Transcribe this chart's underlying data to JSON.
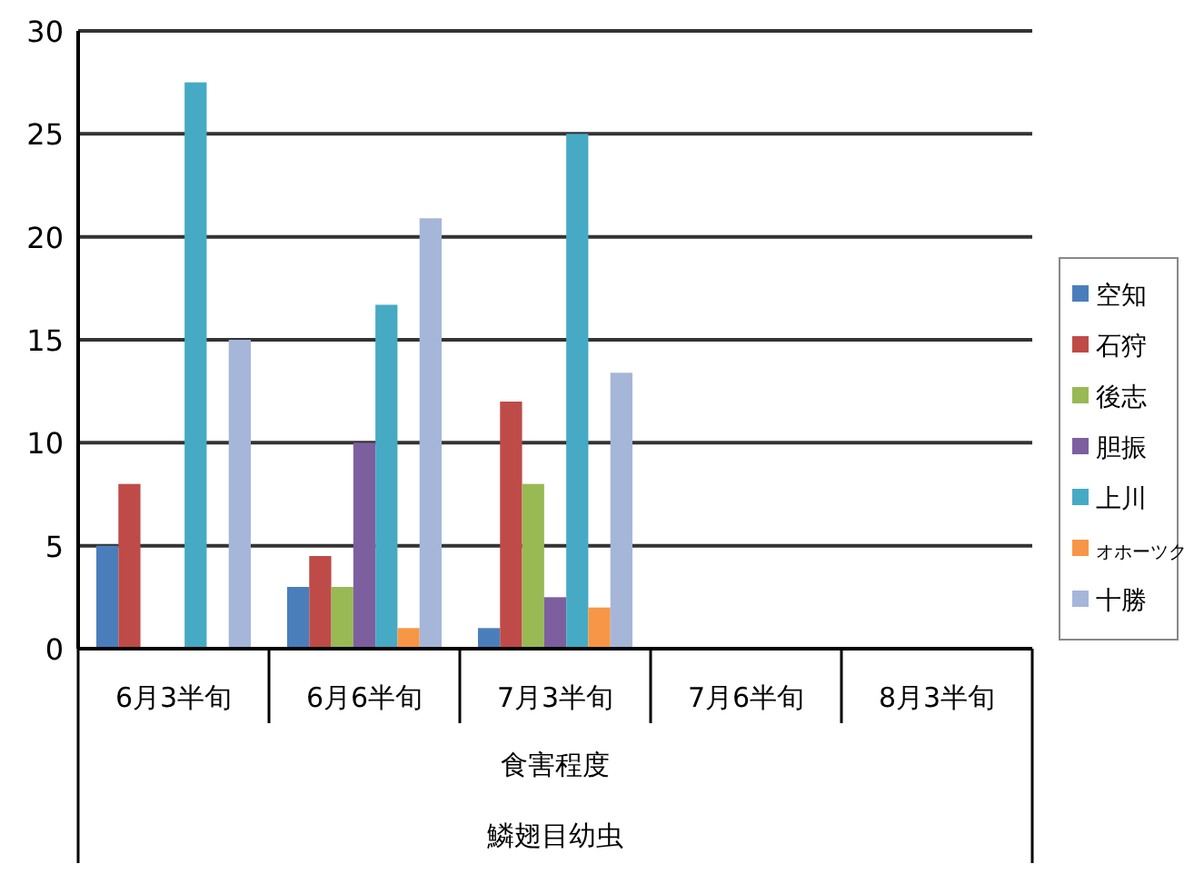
{
  "chart_data": {
    "type": "bar",
    "xlabel": "食害程度",
    "annotations": [
      "鱗翅目幼虫"
    ],
    "categories": [
      "6月3半旬",
      "6月6半旬",
      "7月3半旬",
      "7月6半旬",
      "8月3半旬"
    ],
    "series": [
      {
        "name": "空知",
        "color": "#4a7ebb",
        "values": [
          5,
          3,
          1,
          null,
          null
        ]
      },
      {
        "name": "石狩",
        "color": "#be4b48",
        "values": [
          8,
          4.5,
          12,
          null,
          null
        ]
      },
      {
        "name": "後志",
        "color": "#98b954",
        "values": [
          null,
          3,
          8,
          null,
          null
        ]
      },
      {
        "name": "胆振",
        "color": "#7d5fa0",
        "values": [
          null,
          10,
          2.5,
          null,
          null
        ]
      },
      {
        "name": "上川",
        "color": "#46aac5",
        "values": [
          27.5,
          16.7,
          25,
          null,
          null
        ]
      },
      {
        "name": "オホーツク",
        "color": "#f79646",
        "values": [
          null,
          1,
          2,
          null,
          null
        ]
      },
      {
        "name": "十勝",
        "color": "#a5b6d9",
        "values": [
          15,
          20.9,
          13.4,
          null,
          null
        ]
      }
    ],
    "ylim": [
      0,
      30
    ],
    "yticks": [
      0,
      5,
      10,
      15,
      20,
      25,
      30
    ],
    "grid": "y",
    "legend": "right"
  }
}
